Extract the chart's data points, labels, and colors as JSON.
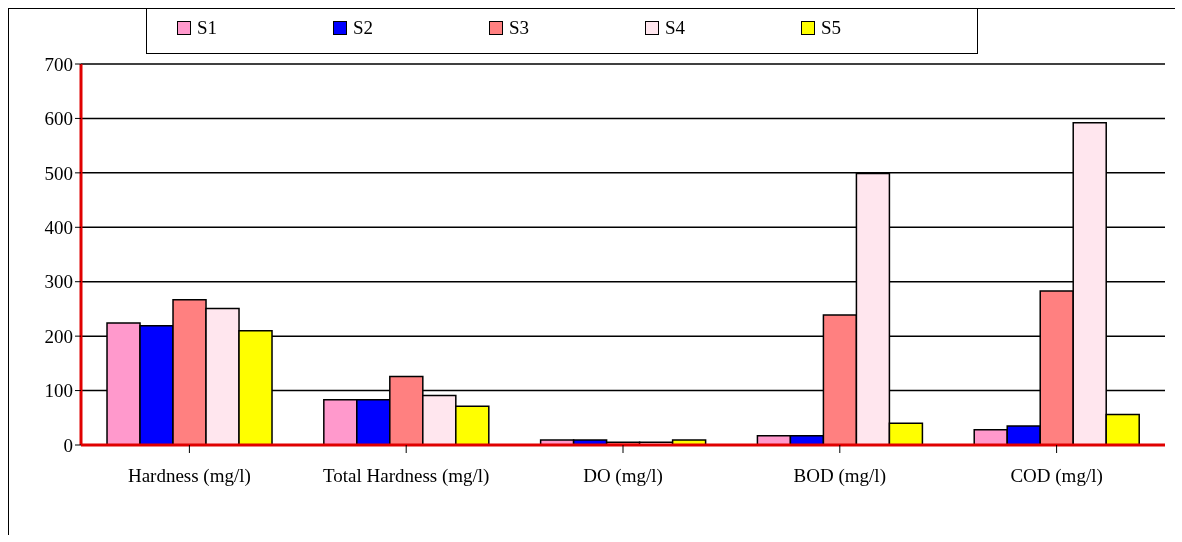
{
  "chart_data": {
    "type": "bar",
    "categories": [
      "Hardness (mg/l)",
      "Total Hardness (mg/l)",
      "DO (mg/l)",
      "BOD (mg/l)",
      "COD (mg/l)"
    ],
    "series": [
      {
        "name": "S1",
        "color": "#ff99cc",
        "values": [
          224,
          83,
          9,
          17,
          28
        ]
      },
      {
        "name": "S2",
        "color": "#0000ff",
        "values": [
          219,
          83,
          9,
          17,
          35
        ]
      },
      {
        "name": "S3",
        "color": "#ff8080",
        "values": [
          267,
          126,
          5,
          239,
          283
        ]
      },
      {
        "name": "S4",
        "color": "#ffe6ee",
        "values": [
          251,
          91,
          5,
          499,
          592
        ]
      },
      {
        "name": "S5",
        "color": "#ffff00",
        "values": [
          210,
          71,
          9,
          40,
          56
        ]
      }
    ],
    "ylim": [
      0,
      700
    ],
    "yticks": [
      0,
      100,
      200,
      300,
      400,
      500,
      600,
      700
    ],
    "grid": "y",
    "legend": "top"
  }
}
